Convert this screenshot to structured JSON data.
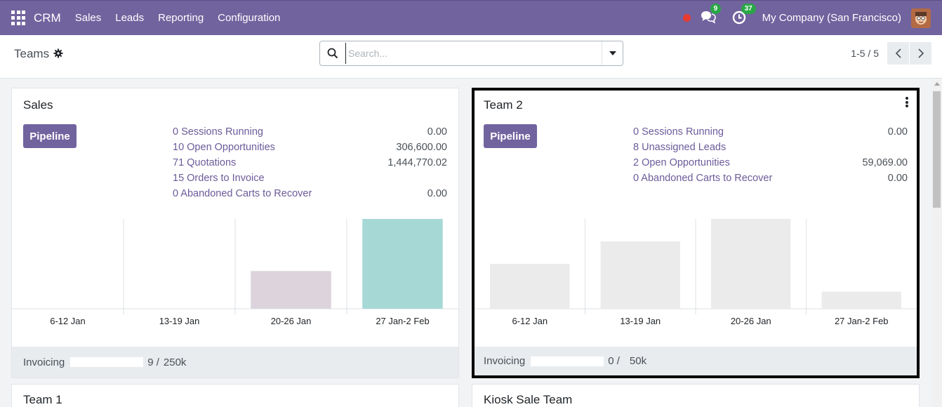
{
  "navbar": {
    "brand": "CRM",
    "menu": [
      "Sales",
      "Leads",
      "Reporting",
      "Configuration"
    ],
    "messages_count": "9",
    "activities_count": "37",
    "company": "My Company (San Francisco)"
  },
  "control": {
    "breadcrumb": "Teams",
    "search_placeholder": "Search...",
    "pager": "1-5 / 5"
  },
  "cards": [
    {
      "title": "Sales",
      "pipeline_label": "Pipeline",
      "stats": [
        {
          "label": "0 Sessions Running",
          "value": "0.00"
        },
        {
          "label": "10 Open Opportunities",
          "value": "306,600.00"
        },
        {
          "label": "71 Quotations",
          "value": "1,444,770.02"
        },
        {
          "label": "15 Orders to Invoice",
          "value": ""
        },
        {
          "label": "0  Abandoned Carts to Recover",
          "value": "0.00"
        }
      ],
      "chart_data": {
        "type": "bar",
        "categories": [
          "6-12 Jan",
          "13-19 Jan",
          "20-26 Jan",
          "27 Jan-2 Feb"
        ],
        "values": [
          0,
          0,
          42,
          100
        ],
        "colors": [
          "#e6e6e6",
          "#e6e6e6",
          "#dcd3dc",
          "#a6d8d6"
        ]
      },
      "footer": {
        "label": "Invoicing",
        "value": "9 /",
        "target": "250k",
        "progress": 0.0
      }
    },
    {
      "title": "Team 2",
      "pipeline_label": "Pipeline",
      "stats": [
        {
          "label": "0 Sessions Running",
          "value": "0.00"
        },
        {
          "label": "8 Unassigned Leads",
          "value": ""
        },
        {
          "label": "2 Open Opportunities",
          "value": "59,069.00"
        },
        {
          "label": "0  Abandoned Carts to Recover",
          "value": "0.00"
        }
      ],
      "chart_data": {
        "type": "bar",
        "categories": [
          "6-12 Jan",
          "13-19 Jan",
          "20-26 Jan",
          "27 Jan-2 Feb"
        ],
        "values": [
          50,
          75,
          100,
          19
        ],
        "colors": [
          "#ebebeb",
          "#ebebeb",
          "#ebebeb",
          "#ebebeb"
        ]
      },
      "footer": {
        "label": "Invoicing",
        "value": "0 /",
        "target": "50k",
        "progress": 0.0
      }
    },
    {
      "title": "Team 1"
    },
    {
      "title": "Kiosk Sale Team"
    }
  ],
  "colors": {
    "brand": "#71639e",
    "selection_border": "#000000"
  }
}
